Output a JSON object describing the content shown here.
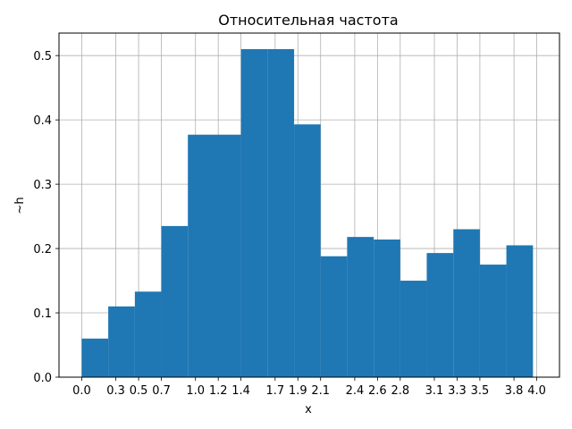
{
  "chart_data": {
    "type": "bar",
    "title": "Относительная частота",
    "xlabel": "x",
    "ylabel": "~h",
    "bins": [
      {
        "left": 0.0,
        "right": 0.233,
        "value": 0.06
      },
      {
        "left": 0.233,
        "right": 0.467,
        "value": 0.11
      },
      {
        "left": 0.467,
        "right": 0.7,
        "value": 0.133
      },
      {
        "left": 0.7,
        "right": 0.933,
        "value": 0.235
      },
      {
        "left": 0.933,
        "right": 1.167,
        "value": 0.377
      },
      {
        "left": 1.167,
        "right": 1.4,
        "value": 0.377
      },
      {
        "left": 1.4,
        "right": 1.633,
        "value": 0.51
      },
      {
        "left": 1.633,
        "right": 1.867,
        "value": 0.51
      },
      {
        "left": 1.867,
        "right": 2.1,
        "value": 0.393
      },
      {
        "left": 2.1,
        "right": 2.333,
        "value": 0.188
      },
      {
        "left": 2.333,
        "right": 2.567,
        "value": 0.218
      },
      {
        "left": 2.567,
        "right": 2.8,
        "value": 0.214
      },
      {
        "left": 2.8,
        "right": 3.033,
        "value": 0.15
      },
      {
        "left": 3.033,
        "right": 3.267,
        "value": 0.193
      },
      {
        "left": 3.267,
        "right": 3.5,
        "value": 0.23
      },
      {
        "left": 3.5,
        "right": 3.733,
        "value": 0.175
      },
      {
        "left": 3.733,
        "right": 3.967,
        "value": 0.205
      }
    ],
    "xticks": [
      0.0,
      0.3,
      0.5,
      0.7,
      1.0,
      1.2,
      1.4,
      1.7,
      1.9,
      2.1,
      2.4,
      2.6,
      2.8,
      3.1,
      3.3,
      3.5,
      3.8,
      4.0
    ],
    "xtick_labels": [
      "0.0",
      "0.3",
      "0.5",
      "0.7",
      "1.0",
      "1.2",
      "1.4",
      "1.7",
      "1.9",
      "2.1",
      "2.4",
      "2.6",
      "2.8",
      "3.1",
      "3.3",
      "3.5",
      "3.8",
      "4.0"
    ],
    "yticks": [
      0.0,
      0.1,
      0.2,
      0.3,
      0.4,
      0.5
    ],
    "ytick_labels": [
      "0.0",
      "0.1",
      "0.2",
      "0.3",
      "0.4",
      "0.5"
    ],
    "xlim": [
      -0.2,
      4.2
    ],
    "ylim": [
      0,
      0.535
    ],
    "grid": true,
    "bar_color": "#1f77b4",
    "grid_color": "#b0b0b0"
  }
}
